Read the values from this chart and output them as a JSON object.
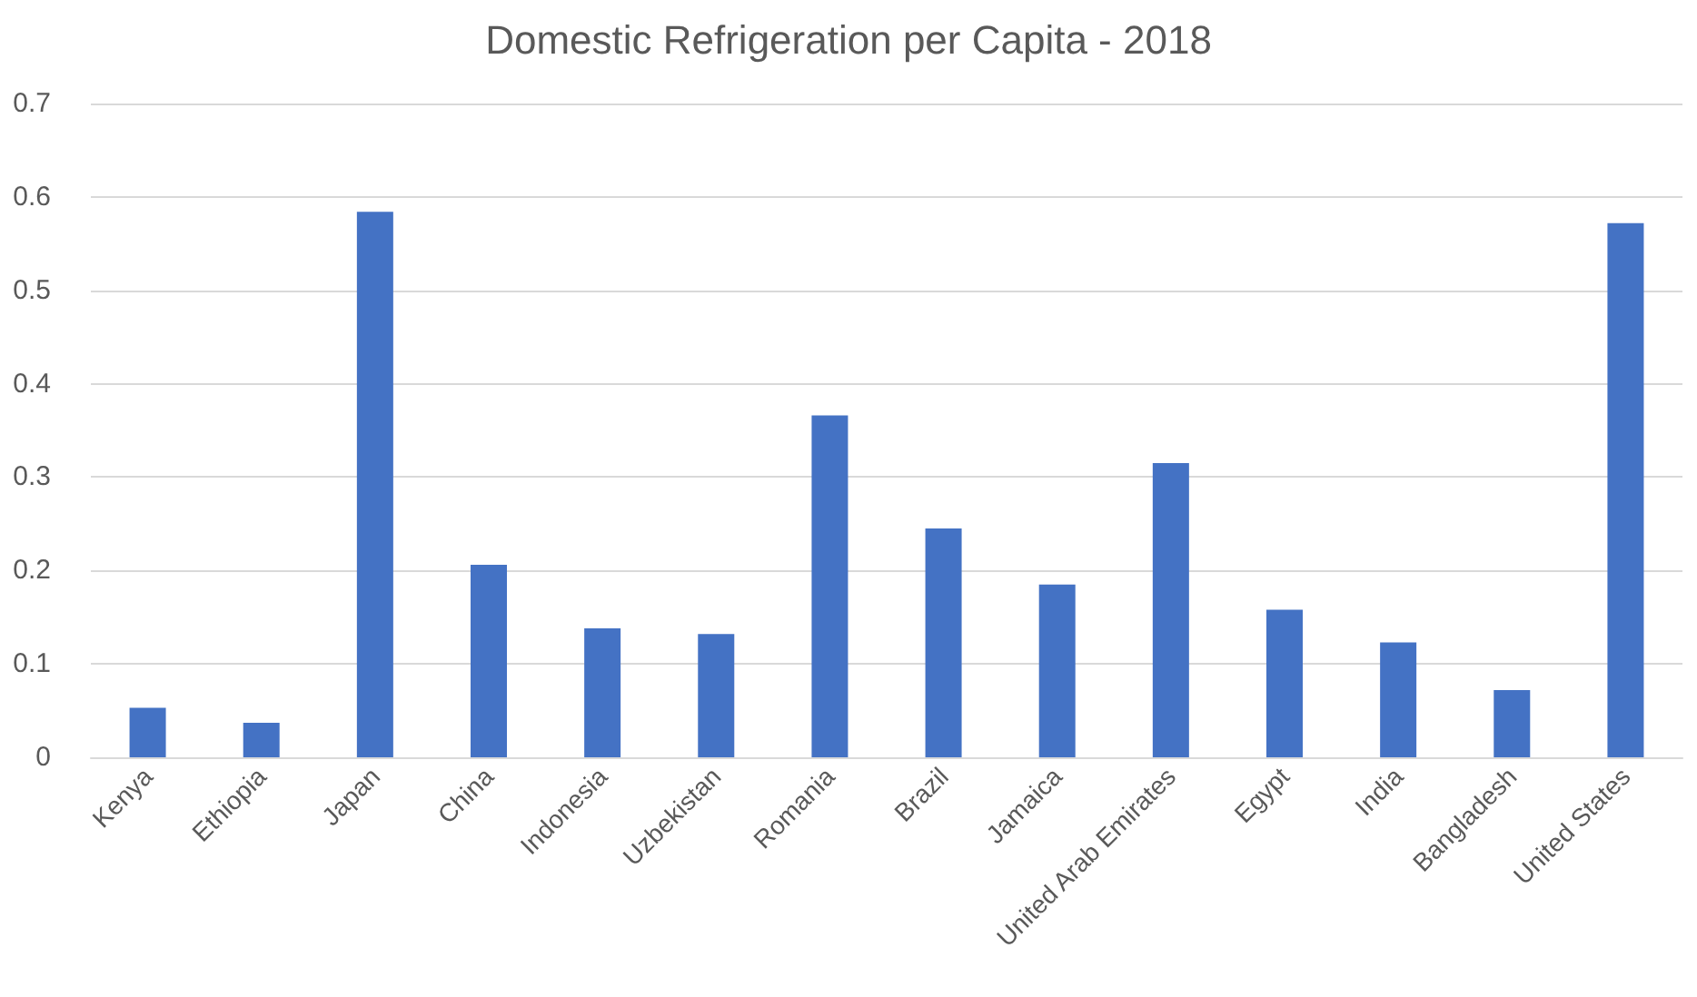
{
  "chart_data": {
    "type": "bar",
    "title": "Domestic Refrigeration per Capita - 2018",
    "categories": [
      "Kenya",
      "Ethiopia",
      "Japan",
      "China",
      "Indonesia",
      "Uzbekistan",
      "Romania",
      "Brazil",
      "Jamaica",
      "United Arab Emirates",
      "Egypt",
      "India",
      "Bangladesh",
      "United States"
    ],
    "values": [
      0.053,
      0.037,
      0.584,
      0.206,
      0.138,
      0.132,
      0.366,
      0.245,
      0.185,
      0.315,
      0.158,
      0.123,
      0.072,
      0.572
    ],
    "color": "#4472c4",
    "ylim": [
      0,
      0.7
    ],
    "yticks": [
      0,
      0.1,
      0.2,
      0.3,
      0.4,
      0.5,
      0.6,
      0.7
    ],
    "grid": true
  }
}
